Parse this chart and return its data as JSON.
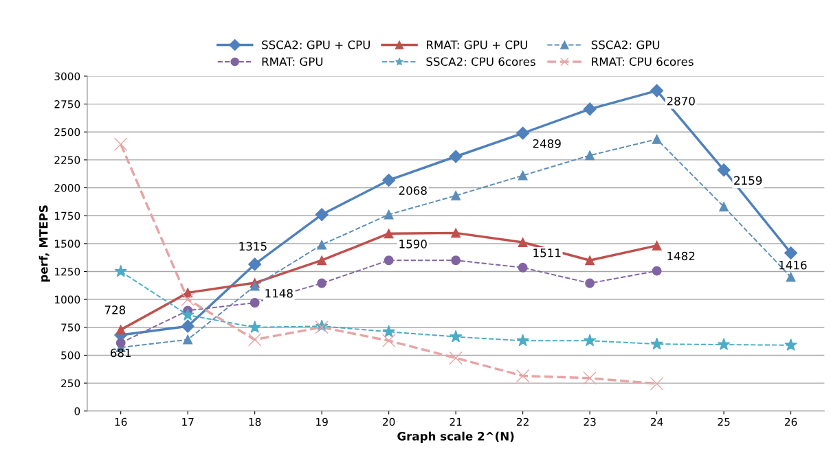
{
  "chart_data": {
    "type": "line",
    "xlabel": "Graph scale 2^(N)",
    "ylabel": "perf, MTEPS",
    "categories": [
      "16",
      "17",
      "18",
      "19",
      "20",
      "21",
      "22",
      "23",
      "24",
      "25",
      "26"
    ],
    "ylim": [
      0,
      3000
    ],
    "yticks": [
      0,
      250,
      500,
      750,
      1000,
      1250,
      1500,
      1750,
      2000,
      2250,
      2500,
      2750,
      3000
    ],
    "grid": "y",
    "legend": "top",
    "series": [
      {
        "name": "SSCA2: GPU + CPU",
        "color": "#4f81bd",
        "marker": "diamond",
        "line_style": "solid",
        "values": [
          681,
          760,
          1315,
          1760,
          2068,
          2280,
          2489,
          2705,
          2870,
          2159,
          1416
        ],
        "value_labels": [
          "681",
          null,
          "1315",
          null,
          "2068",
          null,
          "2489",
          null,
          "2870",
          "2159",
          "1416"
        ]
      },
      {
        "name": "RMAT: GPU + CPU",
        "color": "#c0504d",
        "marker": "triangle",
        "line_style": "solid",
        "values": [
          728,
          1060,
          1148,
          1350,
          1590,
          1595,
          1511,
          1350,
          1482,
          null,
          null
        ],
        "value_labels": [
          "728",
          null,
          "1148",
          null,
          "1590",
          null,
          "1511",
          null,
          "1482",
          null,
          null
        ]
      },
      {
        "name": "SSCA2: GPU",
        "color": "#5b8db8",
        "marker": "triangle",
        "line_style": "dashed",
        "values": [
          570,
          640,
          1120,
          1490,
          1760,
          1930,
          2110,
          2290,
          2435,
          1830,
          1200
        ]
      },
      {
        "name": "RMAT: GPU",
        "color": "#8064a2",
        "marker": "circle",
        "line_style": "dashed",
        "values": [
          610,
          900,
          970,
          1145,
          1350,
          1350,
          1285,
          1145,
          1255,
          null,
          null
        ]
      },
      {
        "name": "SSCA2: CPU 6cores",
        "color": "#4bacc6",
        "marker": "star",
        "line_style": "dashed",
        "values": [
          1250,
          860,
          750,
          760,
          710,
          665,
          630,
          630,
          600,
          595,
          590
        ]
      },
      {
        "name": "RMAT: CPU 6cores",
        "color": "#e6a5a5",
        "marker": "cross",
        "line_style": "dashed",
        "values": [
          2390,
          1000,
          640,
          750,
          630,
          475,
          315,
          295,
          245,
          null,
          null
        ]
      }
    ]
  }
}
